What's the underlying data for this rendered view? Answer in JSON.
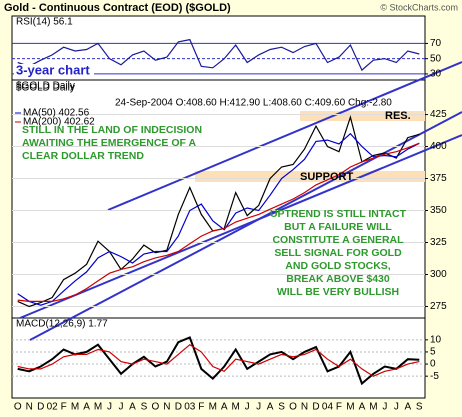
{
  "header": {
    "title": "Gold - Continuous Contract (EOD) ($GOLD)",
    "source": "© StockCharts.com"
  },
  "chart_data": [
    {
      "type": "line",
      "title": "RSI(14) 56.1",
      "annotation": "3-year chart",
      "ylim": [
        22,
        106
      ],
      "yticks": [
        30,
        50,
        70
      ],
      "series": [
        {
          "name": "RSI(14)",
          "color": "#1a1a9a",
          "values": [
            45,
            40,
            48,
            55,
            65,
            60,
            62,
            70,
            50,
            42,
            55,
            60,
            48,
            52,
            72,
            75,
            40,
            38,
            50,
            68,
            45,
            55,
            62,
            65,
            58,
            66,
            70,
            45,
            52,
            68,
            35,
            48,
            50,
            45,
            60,
            56.1
          ]
        }
      ]
    },
    {
      "type": "line",
      "title": "$GOLD Daily",
      "quote": "24-Sep-2004 O:408.60 H:412.90 L:408.60 C:409.60 Chg:-2.80",
      "ylim": [
        266,
        452
      ],
      "yticks": [
        275,
        300,
        325,
        350,
        375,
        400,
        425
      ],
      "grid": true,
      "series": [
        {
          "name": "$GOLD",
          "color": "#000000",
          "values": [
            279,
            275,
            278,
            282,
            296,
            301,
            308,
            326,
            318,
            304,
            312,
            323,
            317,
            319,
            347,
            368,
            347,
            334,
            336,
            364,
            346,
            354,
            375,
            384,
            386,
            398,
            416,
            400,
            396,
            423,
            388,
            393,
            395,
            391,
            407,
            409.6
          ]
        },
        {
          "name": "MA(50) 402.56",
          "color": "#0000cc",
          "values": [
            285,
            279,
            276,
            279,
            287,
            295,
            302,
            313,
            318,
            314,
            309,
            316,
            318,
            318,
            330,
            350,
            355,
            342,
            335,
            348,
            352,
            350,
            362,
            375,
            382,
            390,
            404,
            405,
            402,
            410,
            400,
            392,
            393,
            392,
            398,
            402.56
          ]
        },
        {
          "name": "MA(200) 402.62",
          "color": "#cc0000",
          "values": [
            280,
            279,
            279,
            279,
            281,
            284,
            289,
            295,
            301,
            304,
            306,
            310,
            313,
            315,
            318,
            324,
            330,
            334,
            336,
            341,
            344,
            347,
            351,
            355,
            359,
            364,
            370,
            374,
            378,
            384,
            388,
            391,
            394,
            396,
            399,
            402.62
          ]
        }
      ],
      "res_label": "RES.",
      "support_label": "SUPPORT",
      "annotations": [
        [
          "STILL IN THE LAND OF INDECISION",
          "AWAITING THE EMERGENCE OF A",
          "CLEAR DOLLAR TREND"
        ],
        [
          "UPTREND IS STILL INTACT",
          "BUT A FAILURE WILL",
          "CONSTITUTE A GENERAL",
          "SELL SIGNAL FOR GOLD",
          "AND GOLD STOCKS,",
          "BREAK ABOVE $430",
          "WILL BE VERY BULLISH"
        ]
      ]
    },
    {
      "type": "line",
      "title": "MACD(12,26,9) 1.77",
      "ylim": [
        -14,
        19
      ],
      "yticks": [
        -5,
        0,
        5,
        10
      ],
      "categories": [
        "O",
        "N",
        "D",
        "02",
        "F",
        "M",
        "A",
        "M",
        "J",
        "J",
        "A",
        "S",
        "O",
        "N",
        "D",
        "03",
        "F",
        "M",
        "A",
        "M",
        "J",
        "J",
        "A",
        "S",
        "O",
        "N",
        "D",
        "04",
        "F",
        "M",
        "A",
        "M",
        "J",
        "J",
        "A",
        "S"
      ],
      "series": [
        {
          "name": "MACD",
          "color": "#000000",
          "values": [
            -2,
            -3,
            -1,
            2,
            6,
            4,
            5,
            8,
            2,
            -4,
            0,
            3,
            -1,
            1,
            9,
            11,
            -2,
            -6,
            -1,
            6,
            -2,
            1,
            4,
            5,
            2,
            5,
            7,
            -3,
            -1,
            5,
            -8,
            -4,
            -1,
            -2,
            2,
            1.77
          ]
        },
        {
          "name": "Signal",
          "color": "#cc0000",
          "values": [
            -1,
            -2,
            -2,
            0,
            3,
            4,
            4,
            6,
            5,
            1,
            0,
            2,
            1,
            0,
            4,
            8,
            5,
            -1,
            -3,
            2,
            1,
            0,
            2,
            4,
            3,
            4,
            6,
            2,
            -1,
            2,
            -2,
            -5,
            -3,
            -2,
            0,
            1
          ]
        }
      ]
    }
  ]
}
